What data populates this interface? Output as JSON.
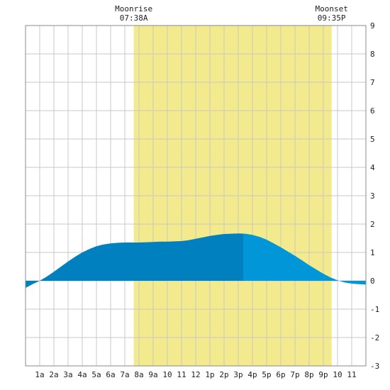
{
  "chart_data": {
    "type": "area",
    "x_unit": "hour of day",
    "x_tick_labels": [
      "1a",
      "2a",
      "3a",
      "4a",
      "5a",
      "6a",
      "7a",
      "8a",
      "9a",
      "10",
      "11",
      "12",
      "1p",
      "2p",
      "3p",
      "4p",
      "5p",
      "6p",
      "7p",
      "8p",
      "9p",
      "10",
      "11"
    ],
    "x_ticks": [
      1,
      2,
      3,
      4,
      5,
      6,
      7,
      8,
      9,
      10,
      11,
      12,
      13,
      14,
      15,
      16,
      17,
      18,
      19,
      20,
      21,
      22,
      23
    ],
    "xlim": [
      0,
      24
    ],
    "ylim": [
      -3,
      9
    ],
    "y_ticks": [
      -3,
      -2,
      -1,
      0,
      1,
      2,
      3,
      4,
      5,
      6,
      7,
      8,
      9
    ],
    "grid": true,
    "series": [
      {
        "x": [
          0,
          0.5,
          1,
          1.5,
          2,
          2.5,
          3,
          3.5,
          4,
          4.5,
          5,
          5.5,
          6,
          6.5,
          7,
          7.5,
          8,
          8.5,
          9,
          9.5,
          10,
          10.5,
          11,
          11.5,
          12,
          12.5,
          13,
          13.5,
          14,
          14.5,
          15,
          15.5,
          16,
          16.5,
          17,
          17.5,
          18,
          18.5,
          19,
          19.5,
          20,
          20.5,
          21,
          21.5,
          22,
          22.5,
          23,
          23.5,
          24
        ],
        "values": [
          -0.25,
          -0.12,
          0.0,
          0.15,
          0.32,
          0.5,
          0.68,
          0.85,
          1.0,
          1.12,
          1.22,
          1.28,
          1.32,
          1.34,
          1.35,
          1.35,
          1.35,
          1.36,
          1.37,
          1.38,
          1.38,
          1.39,
          1.4,
          1.43,
          1.48,
          1.53,
          1.58,
          1.62,
          1.65,
          1.66,
          1.67,
          1.66,
          1.62,
          1.55,
          1.45,
          1.32,
          1.18,
          1.03,
          0.88,
          0.72,
          0.55,
          0.4,
          0.25,
          0.12,
          0.02,
          -0.06,
          -0.1,
          -0.12,
          -0.13
        ]
      }
    ],
    "shading": {
      "moon_up": {
        "start": 7.633,
        "end": 21.583,
        "color": "#f2ea8c"
      },
      "split_hour": 15.35,
      "fill_color_before": "#0080bf",
      "fill_color_after": "#0096d8",
      "background": "#ffffff"
    },
    "annotations": [
      {
        "title": "Moonrise",
        "time": "07:38A",
        "x": 7.633
      },
      {
        "title": "Moonset",
        "time": "09:35P",
        "x": 21.583
      }
    ]
  }
}
